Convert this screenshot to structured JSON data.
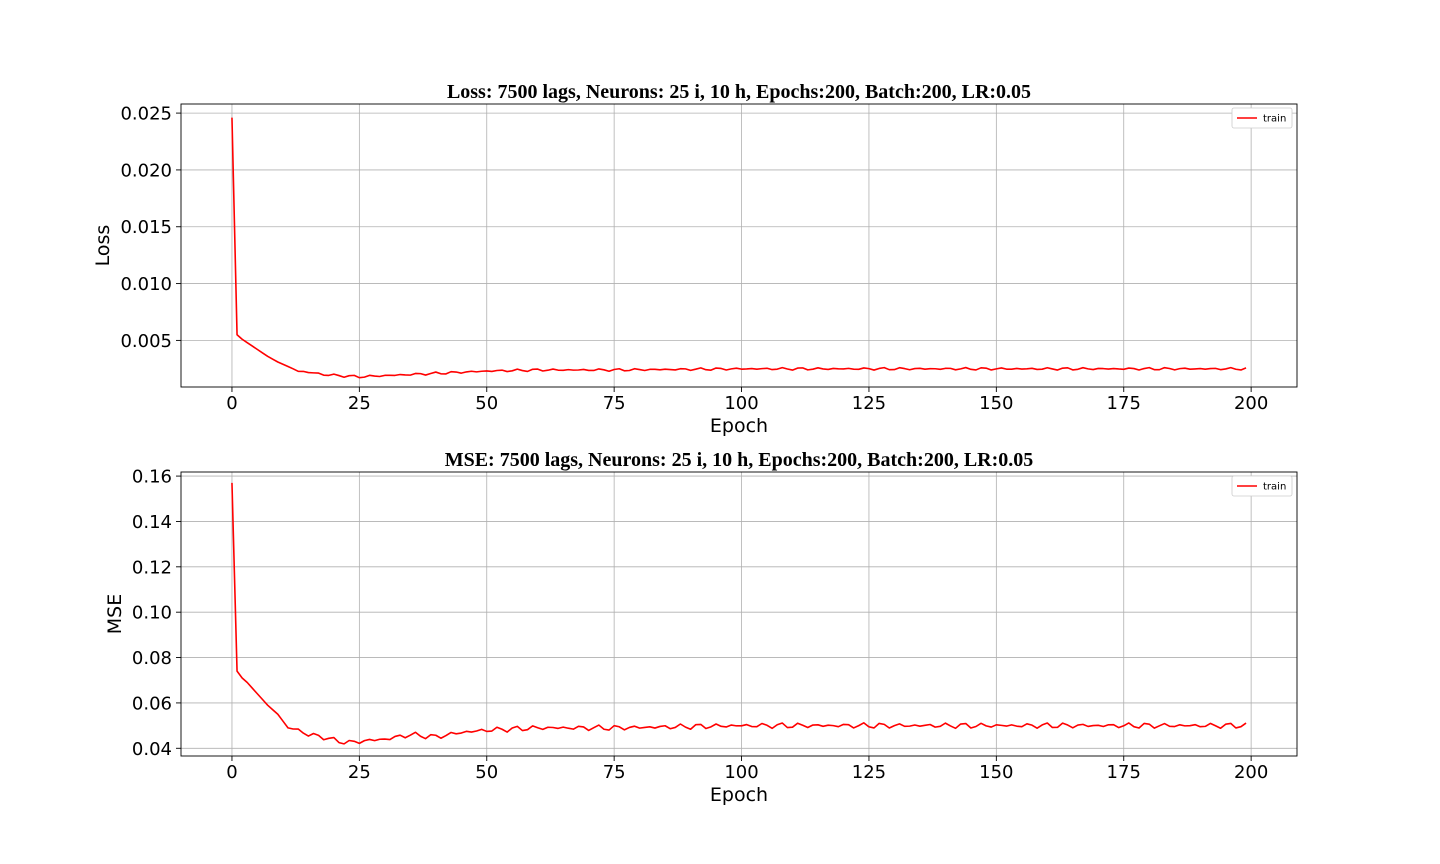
{
  "chart_data": [
    {
      "type": "line",
      "title": "Loss: 7500 lags, Neurons: 25 i, 10 h, Epochs:200, Batch:200, LR:0.05",
      "xlabel": "Epoch",
      "ylabel": "Loss",
      "xlim": [
        -10,
        209
      ],
      "ylim": [
        0.0009,
        0.0258
      ],
      "xticks": [
        0,
        25,
        50,
        75,
        100,
        125,
        150,
        175,
        200
      ],
      "xtick_labels": [
        "0",
        "25",
        "50",
        "75",
        "100",
        "125",
        "150",
        "175",
        "200"
      ],
      "yticks": [
        0.005,
        0.01,
        0.015,
        0.02,
        0.025
      ],
      "ytick_labels": [
        "0.005",
        "0.010",
        "0.015",
        "0.020",
        "0.025"
      ],
      "grid": true,
      "legend": "top-right",
      "series": [
        {
          "name": "train",
          "color": "#ff0000",
          "anchors": [
            [
              0,
              0.0246
            ],
            [
              1,
              0.0055
            ],
            [
              2,
              0.0051
            ],
            [
              3,
              0.0048
            ],
            [
              5,
              0.0042
            ],
            [
              7,
              0.0036
            ],
            [
              9,
              0.0031
            ],
            [
              11,
              0.0027
            ],
            [
              13,
              0.0023
            ],
            [
              15,
              0.0022
            ],
            [
              18,
              0.002
            ],
            [
              21,
              0.0019
            ],
            [
              25,
              0.0018
            ],
            [
              30,
              0.0019
            ],
            [
              35,
              0.002
            ],
            [
              40,
              0.0021
            ],
            [
              45,
              0.0022
            ],
            [
              50,
              0.0023
            ],
            [
              60,
              0.0024
            ],
            [
              75,
              0.0024
            ],
            [
              100,
              0.0025
            ],
            [
              125,
              0.0025
            ],
            [
              150,
              0.0025
            ],
            [
              175,
              0.0025
            ],
            [
              199,
              0.0025
            ]
          ],
          "jitter": 0.00012
        }
      ]
    },
    {
      "type": "line",
      "title": "MSE: 7500 lags, Neurons: 25 i, 10 h, Epochs:200, Batch:200, LR:0.05",
      "xlabel": "Epoch",
      "ylabel": "MSE",
      "xlim": [
        -10,
        209
      ],
      "ylim": [
        0.0366,
        0.1618
      ],
      "xticks": [
        0,
        25,
        50,
        75,
        100,
        125,
        150,
        175,
        200
      ],
      "xtick_labels": [
        "0",
        "25",
        "50",
        "75",
        "100",
        "125",
        "150",
        "175",
        "200"
      ],
      "yticks": [
        0.04,
        0.06,
        0.08,
        0.1,
        0.12,
        0.14,
        0.16
      ],
      "ytick_labels": [
        "0.04",
        "0.06",
        "0.08",
        "0.10",
        "0.12",
        "0.14",
        "0.16"
      ],
      "grid": true,
      "legend": "top-right",
      "series": [
        {
          "name": "train",
          "color": "#ff0000",
          "anchors": [
            [
              0,
              0.157
            ],
            [
              1,
              0.074
            ],
            [
              2,
              0.071
            ],
            [
              3,
              0.069
            ],
            [
              5,
              0.064
            ],
            [
              7,
              0.059
            ],
            [
              9,
              0.055
            ],
            [
              11,
              0.049
            ],
            [
              13,
              0.048
            ],
            [
              15,
              0.046
            ],
            [
              18,
              0.045
            ],
            [
              20,
              0.0435
            ],
            [
              23,
              0.0425
            ],
            [
              27,
              0.0435
            ],
            [
              30,
              0.044
            ],
            [
              35,
              0.046
            ],
            [
              40,
              0.045
            ],
            [
              45,
              0.047
            ],
            [
              50,
              0.048
            ],
            [
              60,
              0.049
            ],
            [
              75,
              0.049
            ],
            [
              100,
              0.05
            ],
            [
              125,
              0.05
            ],
            [
              150,
              0.05
            ],
            [
              175,
              0.05
            ],
            [
              199,
              0.05
            ]
          ],
          "jitter": 0.0013
        }
      ]
    }
  ]
}
